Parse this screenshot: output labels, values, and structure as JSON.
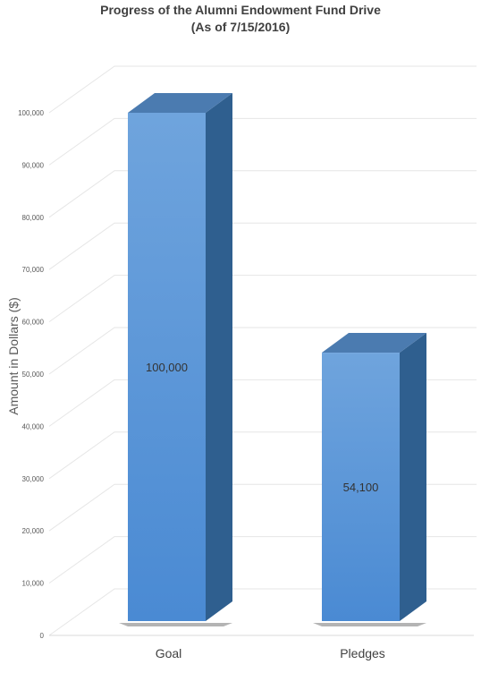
{
  "chart_data": {
    "type": "bar",
    "title": "Progress of the Alumni Endowment Fund Drive",
    "subtitle": "(As of 7/15/2016)",
    "xlabel": "",
    "ylabel": "Amount in Dollars ($)",
    "categories": [
      "Goal",
      "Pledges"
    ],
    "values": [
      100000,
      54100
    ],
    "data_labels": [
      "100,000",
      "54,100"
    ],
    "ylim": [
      0,
      100000
    ],
    "yticks": [
      "0",
      "10,000",
      "20,000",
      "30,000",
      "40,000",
      "50,000",
      "60,000",
      "70,000",
      "80,000",
      "90,000",
      "100,000"
    ],
    "grid": true,
    "legend": "none",
    "style": "3d-column",
    "colors": {
      "bar_top": "#6fa4dd",
      "bar_bottom": "#4a8ad3",
      "bar_side": "#2f5f8f",
      "bar_cap": "#4b7bb0",
      "grid": "#e6e6e6"
    }
  }
}
